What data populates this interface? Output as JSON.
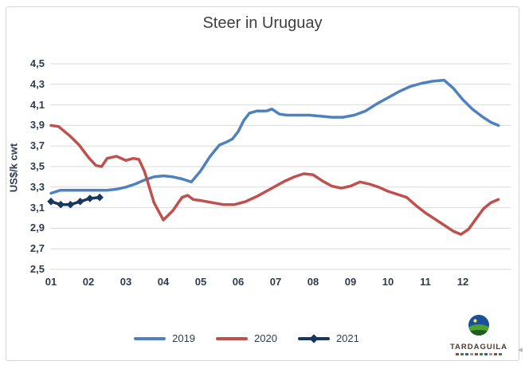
{
  "title": "Steer in Uruguay",
  "y_axis": {
    "label": "US$/k cwt",
    "ticks": [
      "4,5",
      "4,3",
      "4,1",
      "3,9",
      "3,7",
      "3,5",
      "3,3",
      "3,1",
      "2,9",
      "2,7",
      "2,5"
    ]
  },
  "x_axis": {
    "ticks": [
      "01",
      "02",
      "03",
      "04",
      "05",
      "06",
      "07",
      "08",
      "09",
      "10",
      "11",
      "12"
    ]
  },
  "logo": {
    "text": "TARDAGUILA"
  },
  "colors": {
    "grid": "#d9d9d9",
    "axis_text": "#2e3b4e",
    "title_text": "#3f3f3f"
  },
  "chart_data": {
    "type": "line",
    "title": "Steer in Uruguay",
    "xlabel": "",
    "ylabel": "US$/k cwt",
    "ylim": [
      2.5,
      4.5
    ],
    "ytick_step": 0.2,
    "x_unit": "month (weekly points)",
    "grid": true,
    "legend_position": "bottom",
    "series": [
      {
        "name": "2019",
        "color": "#4f81bd",
        "marker": "none",
        "points": [
          [
            1,
            3.24
          ],
          [
            1.25,
            3.27
          ],
          [
            1.5,
            3.27
          ],
          [
            1.75,
            3.27
          ],
          [
            2,
            3.27
          ],
          [
            2.25,
            3.27
          ],
          [
            2.5,
            3.27
          ],
          [
            2.75,
            3.28
          ],
          [
            3,
            3.3
          ],
          [
            3.25,
            3.33
          ],
          [
            3.5,
            3.37
          ],
          [
            3.75,
            3.4
          ],
          [
            4,
            3.41
          ],
          [
            4.25,
            3.4
          ],
          [
            4.5,
            3.38
          ],
          [
            4.75,
            3.35
          ],
          [
            5,
            3.46
          ],
          [
            5.25,
            3.6
          ],
          [
            5.5,
            3.71
          ],
          [
            5.7,
            3.74
          ],
          [
            5.85,
            3.77
          ],
          [
            6,
            3.84
          ],
          [
            6.15,
            3.95
          ],
          [
            6.3,
            4.02
          ],
          [
            6.5,
            4.04
          ],
          [
            6.75,
            4.04
          ],
          [
            6.9,
            4.06
          ],
          [
            7.1,
            4.01
          ],
          [
            7.3,
            4.0
          ],
          [
            7.6,
            4.0
          ],
          [
            7.9,
            4.0
          ],
          [
            8.2,
            3.99
          ],
          [
            8.5,
            3.98
          ],
          [
            8.8,
            3.98
          ],
          [
            9.1,
            4.0
          ],
          [
            9.4,
            4.04
          ],
          [
            9.7,
            4.11
          ],
          [
            10,
            4.17
          ],
          [
            10.3,
            4.23
          ],
          [
            10.6,
            4.28
          ],
          [
            10.9,
            4.31
          ],
          [
            11.2,
            4.33
          ],
          [
            11.5,
            4.34
          ],
          [
            11.75,
            4.26
          ],
          [
            12,
            4.15
          ],
          [
            12.25,
            4.06
          ],
          [
            12.5,
            3.99
          ],
          [
            12.75,
            3.93
          ],
          [
            12.95,
            3.9
          ]
        ]
      },
      {
        "name": "2020",
        "color": "#c0504d",
        "marker": "none",
        "points": [
          [
            1,
            3.9
          ],
          [
            1.2,
            3.89
          ],
          [
            1.5,
            3.8
          ],
          [
            1.75,
            3.71
          ],
          [
            2,
            3.59
          ],
          [
            2.2,
            3.51
          ],
          [
            2.35,
            3.5
          ],
          [
            2.5,
            3.58
          ],
          [
            2.75,
            3.6
          ],
          [
            3,
            3.56
          ],
          [
            3.2,
            3.58
          ],
          [
            3.35,
            3.57
          ],
          [
            3.5,
            3.45
          ],
          [
            3.75,
            3.15
          ],
          [
            4,
            2.98
          ],
          [
            4.25,
            3.07
          ],
          [
            4.5,
            3.2
          ],
          [
            4.65,
            3.22
          ],
          [
            4.8,
            3.18
          ],
          [
            5,
            3.17
          ],
          [
            5.3,
            3.15
          ],
          [
            5.6,
            3.13
          ],
          [
            5.9,
            3.13
          ],
          [
            6.2,
            3.16
          ],
          [
            6.5,
            3.21
          ],
          [
            6.75,
            3.26
          ],
          [
            7,
            3.31
          ],
          [
            7.25,
            3.36
          ],
          [
            7.5,
            3.4
          ],
          [
            7.75,
            3.43
          ],
          [
            8,
            3.42
          ],
          [
            8.25,
            3.36
          ],
          [
            8.5,
            3.31
          ],
          [
            8.75,
            3.29
          ],
          [
            9,
            3.31
          ],
          [
            9.25,
            3.35
          ],
          [
            9.5,
            3.33
          ],
          [
            9.75,
            3.3
          ],
          [
            10,
            3.26
          ],
          [
            10.25,
            3.23
          ],
          [
            10.5,
            3.2
          ],
          [
            10.75,
            3.12
          ],
          [
            11,
            3.05
          ],
          [
            11.25,
            2.99
          ],
          [
            11.5,
            2.93
          ],
          [
            11.75,
            2.87
          ],
          [
            11.95,
            2.84
          ],
          [
            12.15,
            2.89
          ],
          [
            12.35,
            2.99
          ],
          [
            12.55,
            3.09
          ],
          [
            12.75,
            3.15
          ],
          [
            12.95,
            3.18
          ]
        ]
      },
      {
        "name": "2021",
        "color": "#17375e",
        "marker": "diamond",
        "points": [
          [
            1,
            3.16
          ],
          [
            1.26,
            3.13
          ],
          [
            1.52,
            3.13
          ],
          [
            1.78,
            3.16
          ],
          [
            2.04,
            3.19
          ],
          [
            2.3,
            3.2
          ]
        ]
      }
    ]
  }
}
